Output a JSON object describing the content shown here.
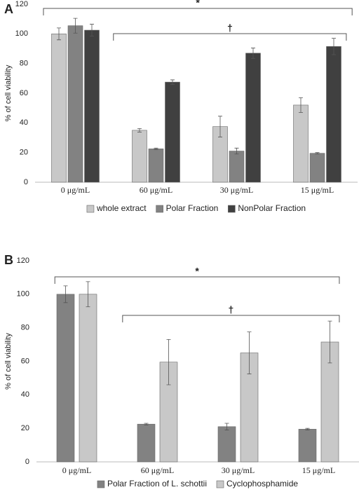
{
  "chart_data": [
    {
      "type": "bar",
      "label": "A",
      "ylabel": "% of cell viability",
      "categories": [
        "0 μg/mL",
        "60 μg/mL",
        "30 μg/mL",
        "15 μg/mL"
      ],
      "series": [
        {
          "name": "whole extract",
          "color": "#c8c8c8",
          "values": [
            100,
            35,
            37.5,
            52
          ],
          "errors": [
            4,
            1.2,
            7,
            5
          ]
        },
        {
          "name": "Polar Fraction",
          "color": "#828282",
          "values": [
            105.5,
            22.5,
            21,
            19.5
          ],
          "errors": [
            5,
            0.5,
            2,
            0.5
          ]
        },
        {
          "name": "NonPolar Fraction",
          "color": "#404040",
          "values": [
            102.5,
            67.5,
            87,
            91.5
          ],
          "errors": [
            4,
            1.5,
            3.5,
            5.5
          ]
        }
      ],
      "ylim": [
        0,
        120
      ],
      "yticks": [
        0,
        20,
        40,
        60,
        80,
        100,
        120
      ],
      "annotations": [
        "*",
        "†"
      ]
    },
    {
      "type": "bar",
      "label": "B",
      "ylabel": "% of cell viability",
      "categories": [
        "0 μg/mL",
        "60 μg/mL",
        "30 μg/mL",
        "15 μg/mL"
      ],
      "series": [
        {
          "name": "Polar Fraction of L. schottii",
          "color": "#828282",
          "values": [
            100,
            22.5,
            21,
            19.5
          ],
          "errors": [
            5,
            0.5,
            2,
            0.5
          ]
        },
        {
          "name": "Cyclophosphamide",
          "color": "#c8c8c8",
          "values": [
            100,
            59.5,
            65,
            71.5
          ],
          "errors": [
            7.5,
            13.5,
            12.5,
            12.5
          ]
        }
      ],
      "ylim": [
        0,
        120
      ],
      "yticks": [
        0,
        20,
        40,
        60,
        80,
        100,
        120
      ],
      "annotations": [
        "*",
        "†"
      ]
    }
  ]
}
